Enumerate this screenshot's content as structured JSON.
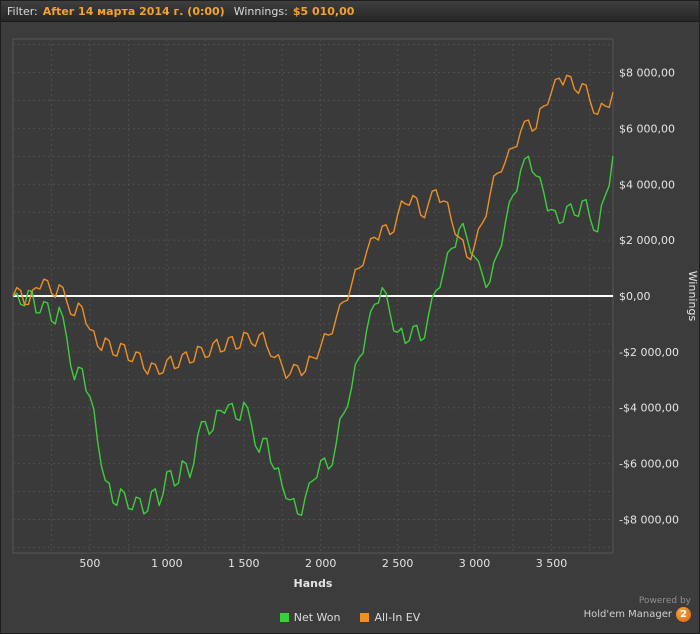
{
  "filter_bar": {
    "filter_label": "Filter:",
    "filter_value": "After 14 марта 2014 г. (0:00)",
    "winnings_label": "Winnings:",
    "winnings_value": "$5 010,00"
  },
  "powered_by": {
    "line1": "Powered by",
    "brand": "Hold'em Manager",
    "badge": "2"
  },
  "colors": {
    "background": "#3c3c3c",
    "plot_background": "#3a3a3a",
    "grid": "#4f4f4f",
    "plot_border": "#565656",
    "zero_line": "#ffffff",
    "axis_text": "#e4e4e4",
    "net_won": "#3ccf3c",
    "all_in_ev": "#ee9025",
    "filter_accent": "#f2a233"
  },
  "chart_data": {
    "type": "line",
    "title": "",
    "xlabel": "Hands",
    "ylabel": "Winnings",
    "xlim": [
      0,
      3900
    ],
    "ylim": [
      -9200,
      9200
    ],
    "grid": true,
    "legend_position": "bottom",
    "x_minor_step": 250,
    "y_minor_step": 1000,
    "x_ticks": [
      {
        "v": 500,
        "label": "500"
      },
      {
        "v": 1000,
        "label": "1 000"
      },
      {
        "v": 1500,
        "label": "1 500"
      },
      {
        "v": 2000,
        "label": "2 000"
      },
      {
        "v": 2500,
        "label": "2 500"
      },
      {
        "v": 3000,
        "label": "3 000"
      },
      {
        "v": 3500,
        "label": "3 500"
      }
    ],
    "y_ticks": [
      {
        "v": 8000,
        "label": "$8 000,00"
      },
      {
        "v": 6000,
        "label": "$6 000,00"
      },
      {
        "v": 4000,
        "label": "$4 000,00"
      },
      {
        "v": 2000,
        "label": "$2 000,00"
      },
      {
        "v": 0,
        "label": "$0,00"
      },
      {
        "v": -2000,
        "label": "-$2 000,00"
      },
      {
        "v": -4000,
        "label": "-$4 000,00"
      },
      {
        "v": -6000,
        "label": "-$6 000,00"
      },
      {
        "v": -8000,
        "label": "-$8 000,00"
      }
    ],
    "series": [
      {
        "name": "Net Won",
        "color": "#3ccf3c",
        "x_start": 0,
        "x_step": 25,
        "values": [
          0,
          100,
          -300,
          -350,
          200,
          150,
          -600,
          -600,
          -200,
          -250,
          -900,
          -1000,
          -400,
          -750,
          -1500,
          -2500,
          -3000,
          -2550,
          -2600,
          -3400,
          -3600,
          -4050,
          -5200,
          -6100,
          -6600,
          -6700,
          -7400,
          -7500,
          -6900,
          -7050,
          -7600,
          -7650,
          -7200,
          -7250,
          -7800,
          -7700,
          -7000,
          -6900,
          -7500,
          -7100,
          -6300,
          -6250,
          -6800,
          -6700,
          -5900,
          -6000,
          -6500,
          -6000,
          -5000,
          -4500,
          -4500,
          -4950,
          -4800,
          -4100,
          -4100,
          -4200,
          -3900,
          -3850,
          -4400,
          -4450,
          -3800,
          -4000,
          -4600,
          -5350,
          -5600,
          -5100,
          -5100,
          -5950,
          -6200,
          -6150,
          -6800,
          -7250,
          -7300,
          -7250,
          -7800,
          -7850,
          -7200,
          -6700,
          -6600,
          -6500,
          -5900,
          -5800,
          -6200,
          -6050,
          -5300,
          -4400,
          -4200,
          -3950,
          -3300,
          -2450,
          -2200,
          -2050,
          -1200,
          -550,
          -300,
          -250,
          300,
          100,
          -600,
          -1250,
          -1300,
          -1150,
          -1700,
          -1600,
          -1100,
          -1050,
          -1600,
          -1500,
          -700,
          -50,
          200,
          300,
          900,
          1550,
          1700,
          1750,
          2400,
          2600,
          2100,
          1550,
          1400,
          1250,
          800,
          300,
          500,
          1200,
          1500,
          1800,
          2600,
          3350,
          3600,
          3750,
          4500,
          4900,
          5000,
          4450,
          4300,
          4250,
          3700,
          3050,
          3100,
          3050,
          2600,
          2650,
          3200,
          3300,
          2900,
          2850,
          3400,
          3450,
          2800,
          2350,
          2300,
          3250,
          3600,
          3950,
          5010
        ]
      },
      {
        "name": "All-In EV",
        "color": "#ee9025",
        "x_start": 0,
        "x_step": 25,
        "values": [
          0,
          300,
          200,
          -300,
          -300,
          200,
          300,
          250,
          600,
          550,
          100,
          -50,
          400,
          300,
          -200,
          -650,
          -700,
          -250,
          -400,
          -1000,
          -1200,
          -1250,
          -1800,
          -1950,
          -1500,
          -1600,
          -2100,
          -2150,
          -1700,
          -1750,
          -2300,
          -2350,
          -2000,
          -2050,
          -2600,
          -2800,
          -2400,
          -2450,
          -2800,
          -2750,
          -2300,
          -2150,
          -2600,
          -2550,
          -2100,
          -2000,
          -2400,
          -2350,
          -1800,
          -1850,
          -2200,
          -2150,
          -1700,
          -1550,
          -2000,
          -1950,
          -1500,
          -1450,
          -1900,
          -1850,
          -1300,
          -1350,
          -1700,
          -1800,
          -1400,
          -1300,
          -1800,
          -2150,
          -2200,
          -2100,
          -2500,
          -2950,
          -2800,
          -2450,
          -2500,
          -2850,
          -2700,
          -2150,
          -2200,
          -2250,
          -1800,
          -1350,
          -1400,
          -1350,
          -800,
          -300,
          -200,
          -150,
          400,
          950,
          1000,
          1100,
          1600,
          2050,
          2100,
          2000,
          2500,
          2550,
          2200,
          2300,
          2900,
          3400,
          3300,
          3250,
          3600,
          3500,
          2900,
          2800,
          3300,
          3750,
          3800,
          3350,
          3400,
          3350,
          2700,
          2200,
          2100,
          2000,
          1400,
          1300,
          1800,
          2400,
          2600,
          2850,
          3600,
          4300,
          4400,
          4450,
          4800,
          5250,
          5300,
          5350,
          5900,
          6250,
          6300,
          5900,
          6000,
          6700,
          6800,
          6850,
          7300,
          7750,
          7800,
          7550,
          7900,
          7850,
          7400,
          7250,
          7600,
          7550,
          7000,
          6550,
          6500,
          6900,
          6800,
          6750,
          7300
        ]
      }
    ]
  }
}
